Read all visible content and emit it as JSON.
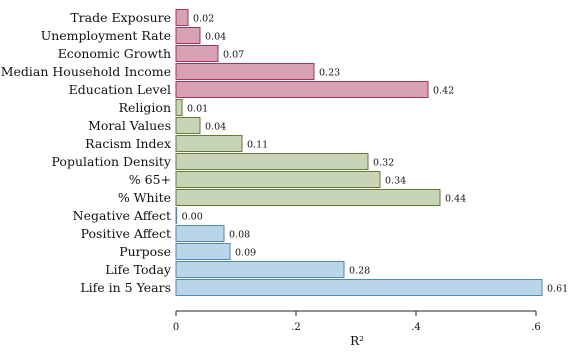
{
  "chart_data": {
    "type": "bar",
    "orientation": "horizontal",
    "xlabel": "R²",
    "ylabel": "",
    "xlim": [
      0,
      0.61
    ],
    "xticks": [
      {
        "value": 0,
        "label": "0"
      },
      {
        "value": 0.2,
        "label": ".2"
      },
      {
        "value": 0.4,
        "label": ".4"
      },
      {
        "value": 0.6,
        "label": ".6"
      }
    ],
    "grid": false,
    "groups": [
      {
        "fill": "#d7a1b1",
        "stroke": "#a23557",
        "bars": [
          {
            "label": "Trade Exposure",
            "value": 0.02,
            "value_label": "0.02"
          },
          {
            "label": "Unemployment Rate",
            "value": 0.04,
            "value_label": "0.04"
          },
          {
            "label": "Economic Growth",
            "value": 0.07,
            "value_label": "0.07"
          },
          {
            "label": "Median Household Income",
            "value": 0.23,
            "value_label": "0.23"
          },
          {
            "label": "Education Level",
            "value": 0.42,
            "value_label": "0.42"
          }
        ]
      },
      {
        "fill": "#c8d4b6",
        "stroke": "#657a34",
        "bars": [
          {
            "label": "Religion",
            "value": 0.01,
            "value_label": "0.01"
          },
          {
            "label": "Moral Values",
            "value": 0.04,
            "value_label": "0.04"
          },
          {
            "label": "Racism Index",
            "value": 0.11,
            "value_label": "0.11"
          },
          {
            "label": "Population Density",
            "value": 0.32,
            "value_label": "0.32"
          },
          {
            "label": "% 65+",
            "value": 0.34,
            "value_label": "0.34"
          },
          {
            "label": "% White",
            "value": 0.44,
            "value_label": "0.44"
          }
        ]
      },
      {
        "fill": "#b9d5e8",
        "stroke": "#4f86b6",
        "bars": [
          {
            "label": "Negative Affect",
            "value": 0.0,
            "value_label": "0.00"
          },
          {
            "label": "Positive Affect",
            "value": 0.08,
            "value_label": "0.08"
          },
          {
            "label": "Purpose",
            "value": 0.09,
            "value_label": "0.09"
          },
          {
            "label": "Life Today",
            "value": 0.28,
            "value_label": "0.28"
          },
          {
            "label": "Life in 5 Years",
            "value": 0.61,
            "value_label": "0.61"
          }
        ]
      }
    ]
  }
}
